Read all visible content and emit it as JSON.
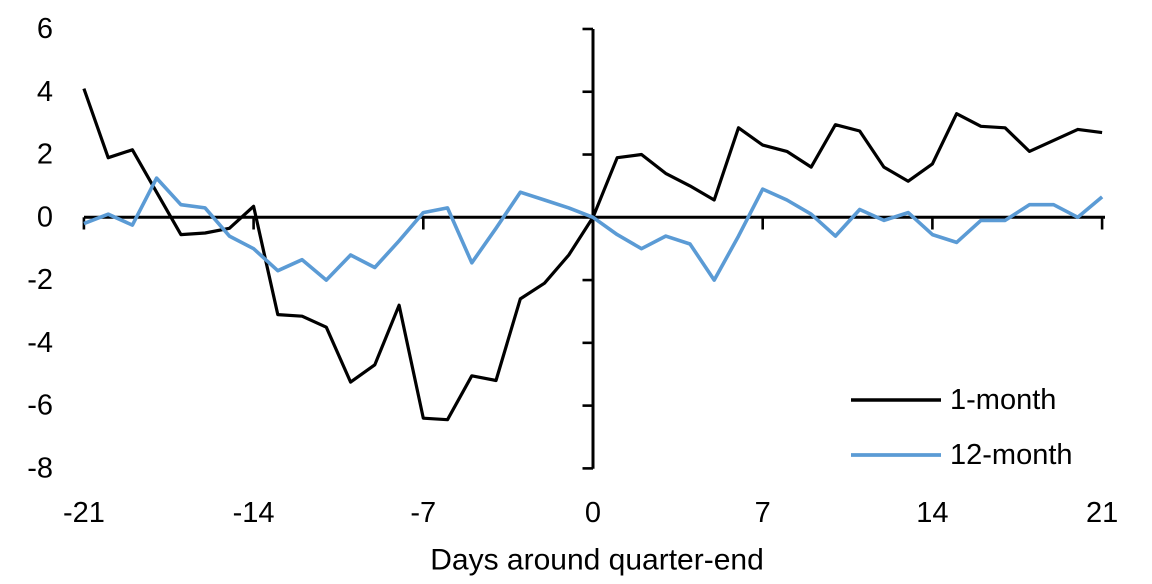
{
  "chart_data": {
    "type": "line",
    "title": "",
    "xlabel": "Days around quarter-end",
    "ylabel": "",
    "xlim": [
      -21,
      21
    ],
    "ylim": [
      -8,
      6
    ],
    "grid": false,
    "legend_position": "inside-right-bottom",
    "x_ticks": [
      -21,
      -14,
      -7,
      0,
      7,
      14,
      21
    ],
    "y_ticks": [
      6,
      4,
      2,
      0,
      -2,
      -4,
      -6,
      -8
    ],
    "x": [
      -21,
      -20,
      -19,
      -18,
      -17,
      -16,
      -15,
      -14,
      -13,
      -12,
      -11,
      -10,
      -9,
      -8,
      -7,
      -6,
      -5,
      -4,
      -3,
      -2,
      -1,
      0,
      1,
      2,
      3,
      4,
      5,
      6,
      7,
      8,
      9,
      10,
      11,
      12,
      13,
      14,
      15,
      16,
      17,
      18,
      19,
      20,
      21
    ],
    "series": [
      {
        "name": "1-month",
        "color": "#000000",
        "values": [
          4.1,
          1.9,
          2.15,
          0.8,
          -0.55,
          -0.5,
          -0.35,
          0.35,
          -3.1,
          -3.15,
          -3.5,
          -5.25,
          -4.7,
          -2.8,
          -6.4,
          -6.45,
          -5.05,
          -5.2,
          -2.6,
          -2.1,
          -1.2,
          0.0,
          1.9,
          2.0,
          1.4,
          1.0,
          0.55,
          2.85,
          2.3,
          2.1,
          1.6,
          2.95,
          2.75,
          1.6,
          1.15,
          1.7,
          3.3,
          2.9,
          2.85,
          2.1,
          2.45,
          2.8,
          2.7
        ]
      },
      {
        "name": "12-month",
        "color": "#5B9BD5",
        "values": [
          -0.2,
          0.1,
          -0.25,
          1.25,
          0.4,
          0.3,
          -0.6,
          -1.0,
          -1.7,
          -1.35,
          -2.0,
          -1.2,
          -1.6,
          -0.75,
          0.15,
          0.3,
          -1.45,
          -0.35,
          0.8,
          0.55,
          0.3,
          0.0,
          -0.55,
          -1.0,
          -0.6,
          -0.85,
          -2.0,
          -0.6,
          0.9,
          0.55,
          0.1,
          -0.6,
          0.25,
          -0.1,
          0.15,
          -0.55,
          -0.8,
          -0.1,
          -0.1,
          0.4,
          0.4,
          0.0,
          0.65
        ]
      }
    ]
  }
}
